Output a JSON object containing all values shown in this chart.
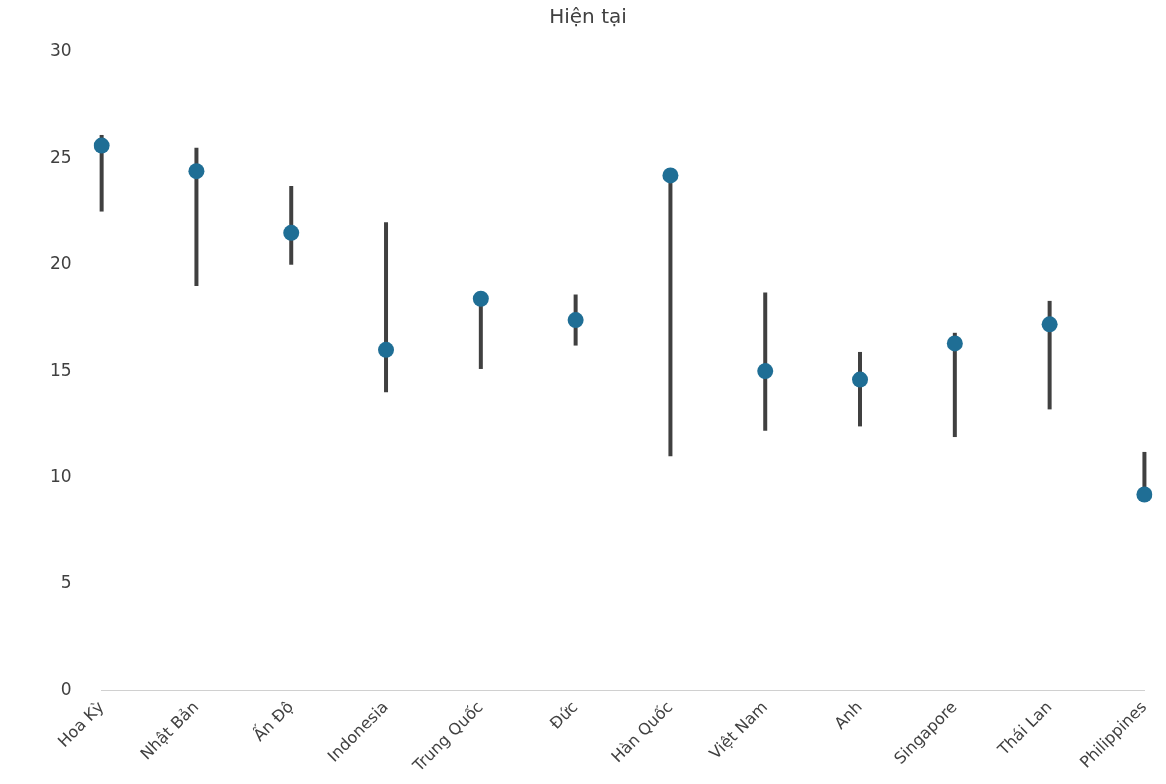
{
  "chart_data": {
    "type": "scatter",
    "title": "Hiện tại",
    "categories": [
      "Hoa Kỳ",
      "Nhật Bản",
      "Ấn Độ",
      "Indonesia",
      "Trung Quốc",
      "Đức",
      "Hàn Quốc",
      "Việt Nam",
      "Anh",
      "Singapore",
      "Thái Lan",
      "Philippines"
    ],
    "values": [
      25.6,
      24.4,
      21.5,
      16.0,
      18.4,
      17.4,
      24.2,
      15.0,
      14.6,
      16.3,
      17.2,
      9.2
    ],
    "errors": [
      [
        22.5,
        26.1
      ],
      [
        19.0,
        25.5
      ],
      [
        20.0,
        23.7
      ],
      [
        14.0,
        22.0
      ],
      [
        15.1,
        18.6
      ],
      [
        16.2,
        18.6
      ],
      [
        11.0,
        24.2
      ],
      [
        12.2,
        18.7
      ],
      [
        12.4,
        15.9
      ],
      [
        11.9,
        16.8
      ],
      [
        13.2,
        18.3
      ],
      [
        9.2,
        11.2
      ]
    ],
    "color": "#1f6e95",
    "marker": "circle",
    "ylim": [
      0,
      30
    ],
    "yticks": [
      0,
      5,
      10,
      15,
      20,
      25,
      30
    ],
    "grid": false,
    "legend": false
  }
}
